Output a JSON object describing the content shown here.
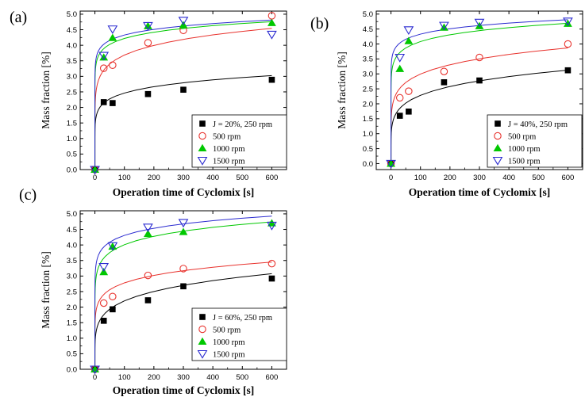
{
  "chart_data": [
    {
      "type": "scatter",
      "panel_label": "(a)",
      "xlabel": "Operation time of Cyclomix [s]",
      "ylabel": "Mass fraction [%]",
      "xlim": [
        -50,
        650
      ],
      "ylim": [
        0,
        5.1
      ],
      "xticks": [
        0,
        100,
        200,
        300,
        400,
        500,
        600
      ],
      "yticks": [
        0.0,
        0.5,
        1.0,
        1.5,
        2.0,
        2.5,
        3.0,
        3.5,
        4.0,
        4.5,
        5.0
      ],
      "grid": false,
      "legend_position": "bottom-right",
      "series": [
        {
          "name": "J = 20%, 250 rpm",
          "color": "#000000",
          "marker": "square-filled",
          "x": [
            0,
            30,
            60,
            180,
            300,
            600
          ],
          "y": [
            0.0,
            2.17,
            2.14,
            2.43,
            2.57,
            2.89
          ],
          "fit": {
            "a": 1.45,
            "b": 0.115
          }
        },
        {
          "name": "500 rpm",
          "color": "#e8322d",
          "marker": "circle-open",
          "x": [
            0,
            30,
            60,
            180,
            300,
            600
          ],
          "y": [
            0.0,
            3.26,
            3.36,
            4.08,
            4.48,
            4.95
          ],
          "fit": {
            "a": 2.15,
            "b": 0.117
          }
        },
        {
          "name": "1000 rpm",
          "color": "#00c800",
          "marker": "triangle-up-filled",
          "x": [
            0,
            30,
            60,
            180,
            300,
            600
          ],
          "y": [
            0.0,
            3.61,
            4.24,
            4.62,
            4.65,
            4.72
          ],
          "fit": {
            "a": 3.1,
            "b": 0.067
          }
        },
        {
          "name": "1500 rpm",
          "color": "#2b2bd0",
          "marker": "triangle-down-open",
          "x": [
            0,
            30,
            60,
            180,
            300,
            600
          ],
          "y": [
            0.0,
            3.67,
            4.52,
            4.63,
            4.8,
            4.35
          ],
          "fit": {
            "a": 3.3,
            "b": 0.059
          }
        }
      ]
    },
    {
      "type": "scatter",
      "panel_label": "(b)",
      "xlabel": "Operation time of Cyclomix [s]",
      "ylabel": "Mass fraction [%]",
      "xlim": [
        -50,
        650
      ],
      "ylim": [
        -0.2,
        5.1
      ],
      "xticks": [
        0,
        100,
        200,
        300,
        400,
        500,
        600
      ],
      "yticks": [
        0.0,
        0.5,
        1.0,
        1.5,
        2.0,
        2.5,
        3.0,
        3.5,
        4.0,
        4.5,
        5.0
      ],
      "grid": false,
      "legend_position": "bottom-right",
      "series": [
        {
          "name": "J = 40%, 250 rpm",
          "color": "#000000",
          "marker": "square-filled",
          "x": [
            0,
            30,
            60,
            180,
            300,
            600
          ],
          "y": [
            0.0,
            1.6,
            1.74,
            2.72,
            2.78,
            3.12
          ],
          "fit": {
            "a": 1.02,
            "b": 0.175
          }
        },
        {
          "name": "500 rpm",
          "color": "#e8322d",
          "marker": "circle-open",
          "x": [
            0,
            30,
            60,
            180,
            300,
            600
          ],
          "y": [
            0.0,
            2.2,
            2.42,
            3.08,
            3.55,
            4.0
          ],
          "fit": {
            "a": 1.55,
            "b": 0.143
          }
        },
        {
          "name": "1000 rpm",
          "color": "#00c800",
          "marker": "triangle-up-filled",
          "x": [
            0,
            30,
            60,
            180,
            300,
            600
          ],
          "y": [
            0.0,
            3.17,
            4.1,
            4.55,
            4.6,
            4.68
          ],
          "fit": {
            "a": 2.85,
            "b": 0.078
          }
        },
        {
          "name": "1500 rpm",
          "color": "#2b2bd0",
          "marker": "triangle-down-open",
          "x": [
            0,
            30,
            60,
            180,
            300,
            600
          ],
          "y": [
            0.0,
            3.55,
            4.47,
            4.62,
            4.72,
            4.76
          ],
          "fit": {
            "a": 3.3,
            "b": 0.059
          }
        }
      ]
    },
    {
      "type": "scatter",
      "panel_label": "(c)",
      "xlabel": "Operation time of Cyclomix [s]",
      "ylabel": "Mass fraction [%]",
      "xlim": [
        -50,
        650
      ],
      "ylim": [
        0,
        5.1
      ],
      "xticks": [
        0,
        100,
        200,
        300,
        400,
        500,
        600
      ],
      "yticks": [
        0.0,
        0.5,
        1.0,
        1.5,
        2.0,
        2.5,
        3.0,
        3.5,
        4.0,
        4.5,
        5.0
      ],
      "grid": false,
      "legend_position": "bottom-right",
      "series": [
        {
          "name": "J = 60%, 250 rpm",
          "color": "#000000",
          "marker": "square-filled",
          "x": [
            0,
            30,
            60,
            180,
            300,
            600
          ],
          "y": [
            0.0,
            1.56,
            1.93,
            2.22,
            2.67,
            2.92
          ],
          "fit": {
            "a": 0.93,
            "b": 0.187
          }
        },
        {
          "name": "500 rpm",
          "color": "#e8322d",
          "marker": "circle-open",
          "x": [
            0,
            30,
            60,
            180,
            300,
            600
          ],
          "y": [
            0.0,
            2.13,
            2.34,
            3.02,
            3.24,
            3.4
          ],
          "fit": {
            "a": 1.6,
            "b": 0.12
          }
        },
        {
          "name": "1000 rpm",
          "color": "#00c800",
          "marker": "triangle-up-filled",
          "x": [
            0,
            30,
            60,
            180,
            300,
            600
          ],
          "y": [
            0.0,
            3.13,
            3.95,
            4.36,
            4.42,
            4.7
          ],
          "fit": {
            "a": 2.6,
            "b": 0.094
          }
        },
        {
          "name": "1500 rpm",
          "color": "#2b2bd0",
          "marker": "triangle-down-open",
          "x": [
            0,
            30,
            60,
            180,
            300,
            600
          ],
          "y": [
            0.0,
            3.3,
            3.97,
            4.57,
            4.72,
            4.63
          ],
          "fit": {
            "a": 3.05,
            "b": 0.075
          }
        }
      ]
    }
  ]
}
